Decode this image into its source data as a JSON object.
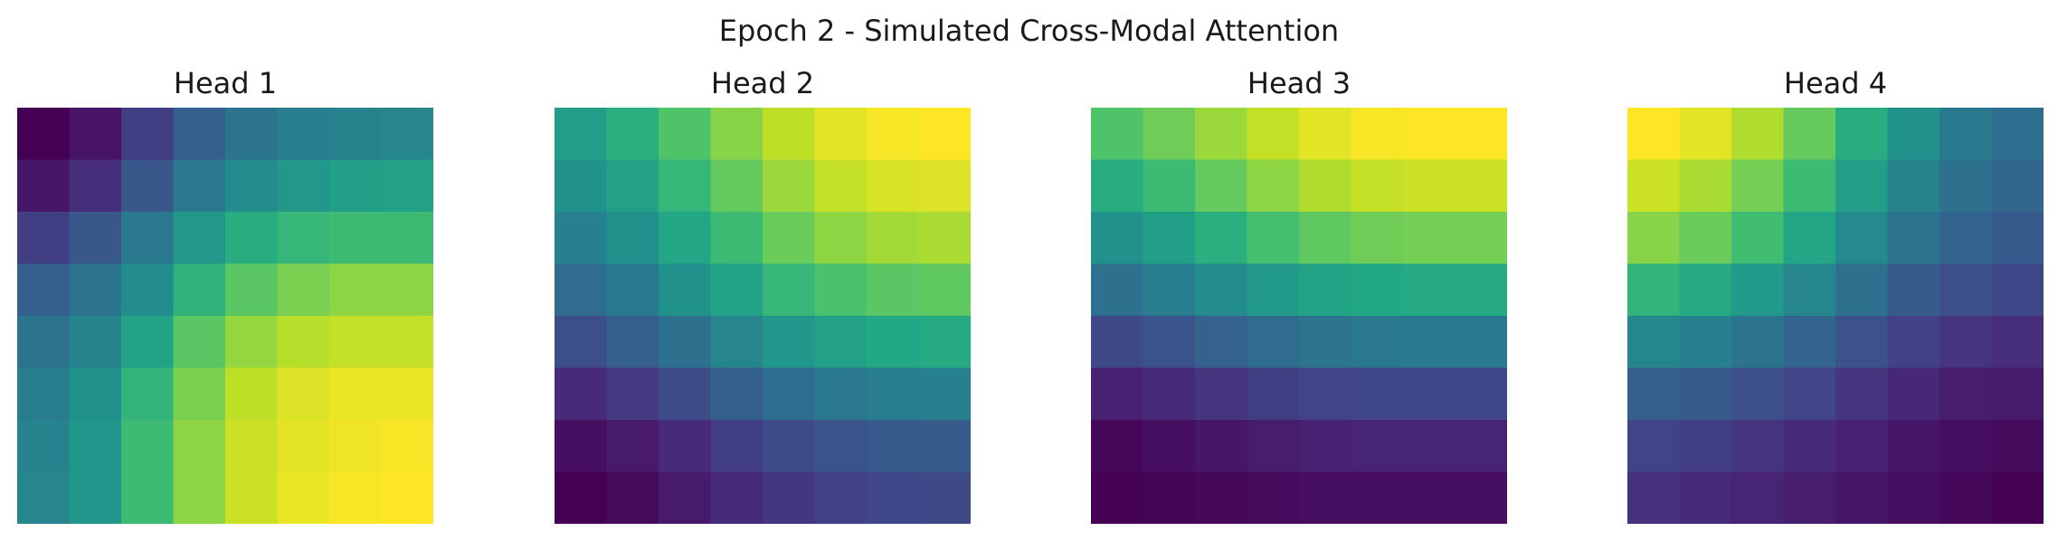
{
  "figure": {
    "title": "Epoch 2 - Simulated Cross-Modal Attention"
  },
  "chart_data": [
    {
      "type": "heatmap",
      "title": "Head 1",
      "colormap": "viridis",
      "axes_visible": false,
      "grid": false,
      "vmin": 0.0,
      "vmax": 1.0,
      "values": [
        [
          0.0,
          0.05,
          0.18,
          0.3,
          0.38,
          0.42,
          0.44,
          0.45
        ],
        [
          0.06,
          0.13,
          0.27,
          0.4,
          0.48,
          0.53,
          0.56,
          0.57
        ],
        [
          0.18,
          0.27,
          0.4,
          0.53,
          0.62,
          0.66,
          0.68,
          0.68
        ],
        [
          0.3,
          0.38,
          0.48,
          0.64,
          0.74,
          0.8,
          0.83,
          0.83
        ],
        [
          0.38,
          0.44,
          0.58,
          0.74,
          0.84,
          0.89,
          0.91,
          0.91
        ],
        [
          0.42,
          0.5,
          0.65,
          0.8,
          0.9,
          0.95,
          0.97,
          0.97
        ],
        [
          0.44,
          0.52,
          0.68,
          0.83,
          0.92,
          0.96,
          0.98,
          0.99
        ],
        [
          0.45,
          0.52,
          0.68,
          0.83,
          0.92,
          0.97,
          0.99,
          1.0
        ]
      ]
    },
    {
      "type": "heatmap",
      "title": "Head 2",
      "colormap": "viridis",
      "axes_visible": false,
      "grid": false,
      "vmin": 0.0,
      "vmax": 1.0,
      "values": [
        [
          0.55,
          0.63,
          0.72,
          0.82,
          0.9,
          0.96,
          0.99,
          1.0
        ],
        [
          0.5,
          0.57,
          0.66,
          0.76,
          0.85,
          0.91,
          0.94,
          0.95
        ],
        [
          0.43,
          0.5,
          0.59,
          0.68,
          0.77,
          0.83,
          0.86,
          0.87
        ],
        [
          0.35,
          0.41,
          0.5,
          0.58,
          0.66,
          0.71,
          0.74,
          0.75
        ],
        [
          0.24,
          0.3,
          0.37,
          0.45,
          0.52,
          0.57,
          0.6,
          0.61
        ],
        [
          0.12,
          0.17,
          0.23,
          0.3,
          0.36,
          0.4,
          0.42,
          0.43
        ],
        [
          0.04,
          0.07,
          0.12,
          0.18,
          0.23,
          0.26,
          0.28,
          0.29
        ],
        [
          0.0,
          0.03,
          0.07,
          0.12,
          0.16,
          0.19,
          0.21,
          0.22
        ]
      ]
    },
    {
      "type": "heatmap",
      "title": "Head 3",
      "colormap": "viridis",
      "axes_visible": false,
      "grid": false,
      "vmin": 0.0,
      "vmax": 1.0,
      "values": [
        [
          0.72,
          0.78,
          0.85,
          0.91,
          0.96,
          0.99,
          1.0,
          1.0
        ],
        [
          0.62,
          0.68,
          0.76,
          0.83,
          0.88,
          0.91,
          0.92,
          0.92
        ],
        [
          0.5,
          0.56,
          0.63,
          0.7,
          0.75,
          0.78,
          0.79,
          0.79
        ],
        [
          0.37,
          0.42,
          0.48,
          0.54,
          0.58,
          0.6,
          0.61,
          0.61
        ],
        [
          0.22,
          0.26,
          0.31,
          0.35,
          0.38,
          0.4,
          0.41,
          0.41
        ],
        [
          0.09,
          0.12,
          0.15,
          0.18,
          0.2,
          0.21,
          0.21,
          0.21
        ],
        [
          0.02,
          0.04,
          0.06,
          0.08,
          0.09,
          0.1,
          0.1,
          0.1
        ],
        [
          0.0,
          0.01,
          0.02,
          0.03,
          0.04,
          0.04,
          0.04,
          0.04
        ]
      ]
    },
    {
      "type": "heatmap",
      "title": "Head 4",
      "colormap": "viridis",
      "axes_visible": false,
      "grid": false,
      "vmin": 0.0,
      "vmax": 1.0,
      "values": [
        [
          1.0,
          0.96,
          0.88,
          0.76,
          0.62,
          0.5,
          0.41,
          0.36
        ],
        [
          0.92,
          0.87,
          0.79,
          0.68,
          0.55,
          0.44,
          0.37,
          0.33
        ],
        [
          0.82,
          0.77,
          0.69,
          0.59,
          0.47,
          0.38,
          0.32,
          0.28
        ],
        [
          0.65,
          0.61,
          0.54,
          0.46,
          0.37,
          0.29,
          0.24,
          0.21
        ],
        [
          0.46,
          0.43,
          0.38,
          0.32,
          0.25,
          0.19,
          0.15,
          0.13
        ],
        [
          0.3,
          0.28,
          0.24,
          0.2,
          0.15,
          0.11,
          0.08,
          0.07
        ],
        [
          0.2,
          0.18,
          0.15,
          0.12,
          0.09,
          0.06,
          0.04,
          0.03
        ],
        [
          0.14,
          0.12,
          0.1,
          0.08,
          0.06,
          0.04,
          0.02,
          0.0
        ]
      ]
    }
  ]
}
